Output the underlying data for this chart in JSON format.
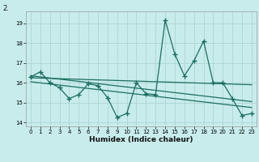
{
  "xlabel": "Humidex (Indice chaleur)",
  "background_color": "#c8ecec",
  "grid_color": "#aed4d4",
  "line_color": "#1a6e60",
  "x_data": [
    0,
    1,
    2,
    3,
    4,
    5,
    6,
    7,
    8,
    9,
    10,
    11,
    12,
    13,
    14,
    15,
    16,
    17,
    18,
    19,
    20,
    21,
    22,
    23
  ],
  "y_data": [
    16.3,
    16.55,
    16.0,
    15.75,
    15.2,
    15.4,
    15.95,
    15.85,
    15.25,
    14.25,
    14.45,
    16.0,
    15.45,
    15.4,
    19.15,
    17.45,
    16.35,
    17.1,
    18.1,
    16.0,
    16.0,
    15.2,
    14.35,
    14.45
  ],
  "ylim": [
    13.8,
    19.6
  ],
  "xlim": [
    -0.5,
    23.5
  ],
  "yticks": [
    14,
    15,
    16,
    17,
    18,
    19
  ],
  "xticks": [
    0,
    1,
    2,
    3,
    4,
    5,
    6,
    7,
    8,
    9,
    10,
    11,
    12,
    13,
    14,
    15,
    16,
    17,
    18,
    19,
    20,
    21,
    22,
    23
  ],
  "trend1_x": [
    0,
    23
  ],
  "trend1_y": [
    16.35,
    15.05
  ],
  "trend2_x": [
    0,
    23
  ],
  "trend2_y": [
    16.25,
    15.9
  ],
  "trend3_x": [
    0,
    23
  ],
  "trend3_y": [
    16.05,
    14.75
  ],
  "top_label": "2.",
  "xlabel_fontsize": 6.5,
  "tick_fontsize": 5.0
}
